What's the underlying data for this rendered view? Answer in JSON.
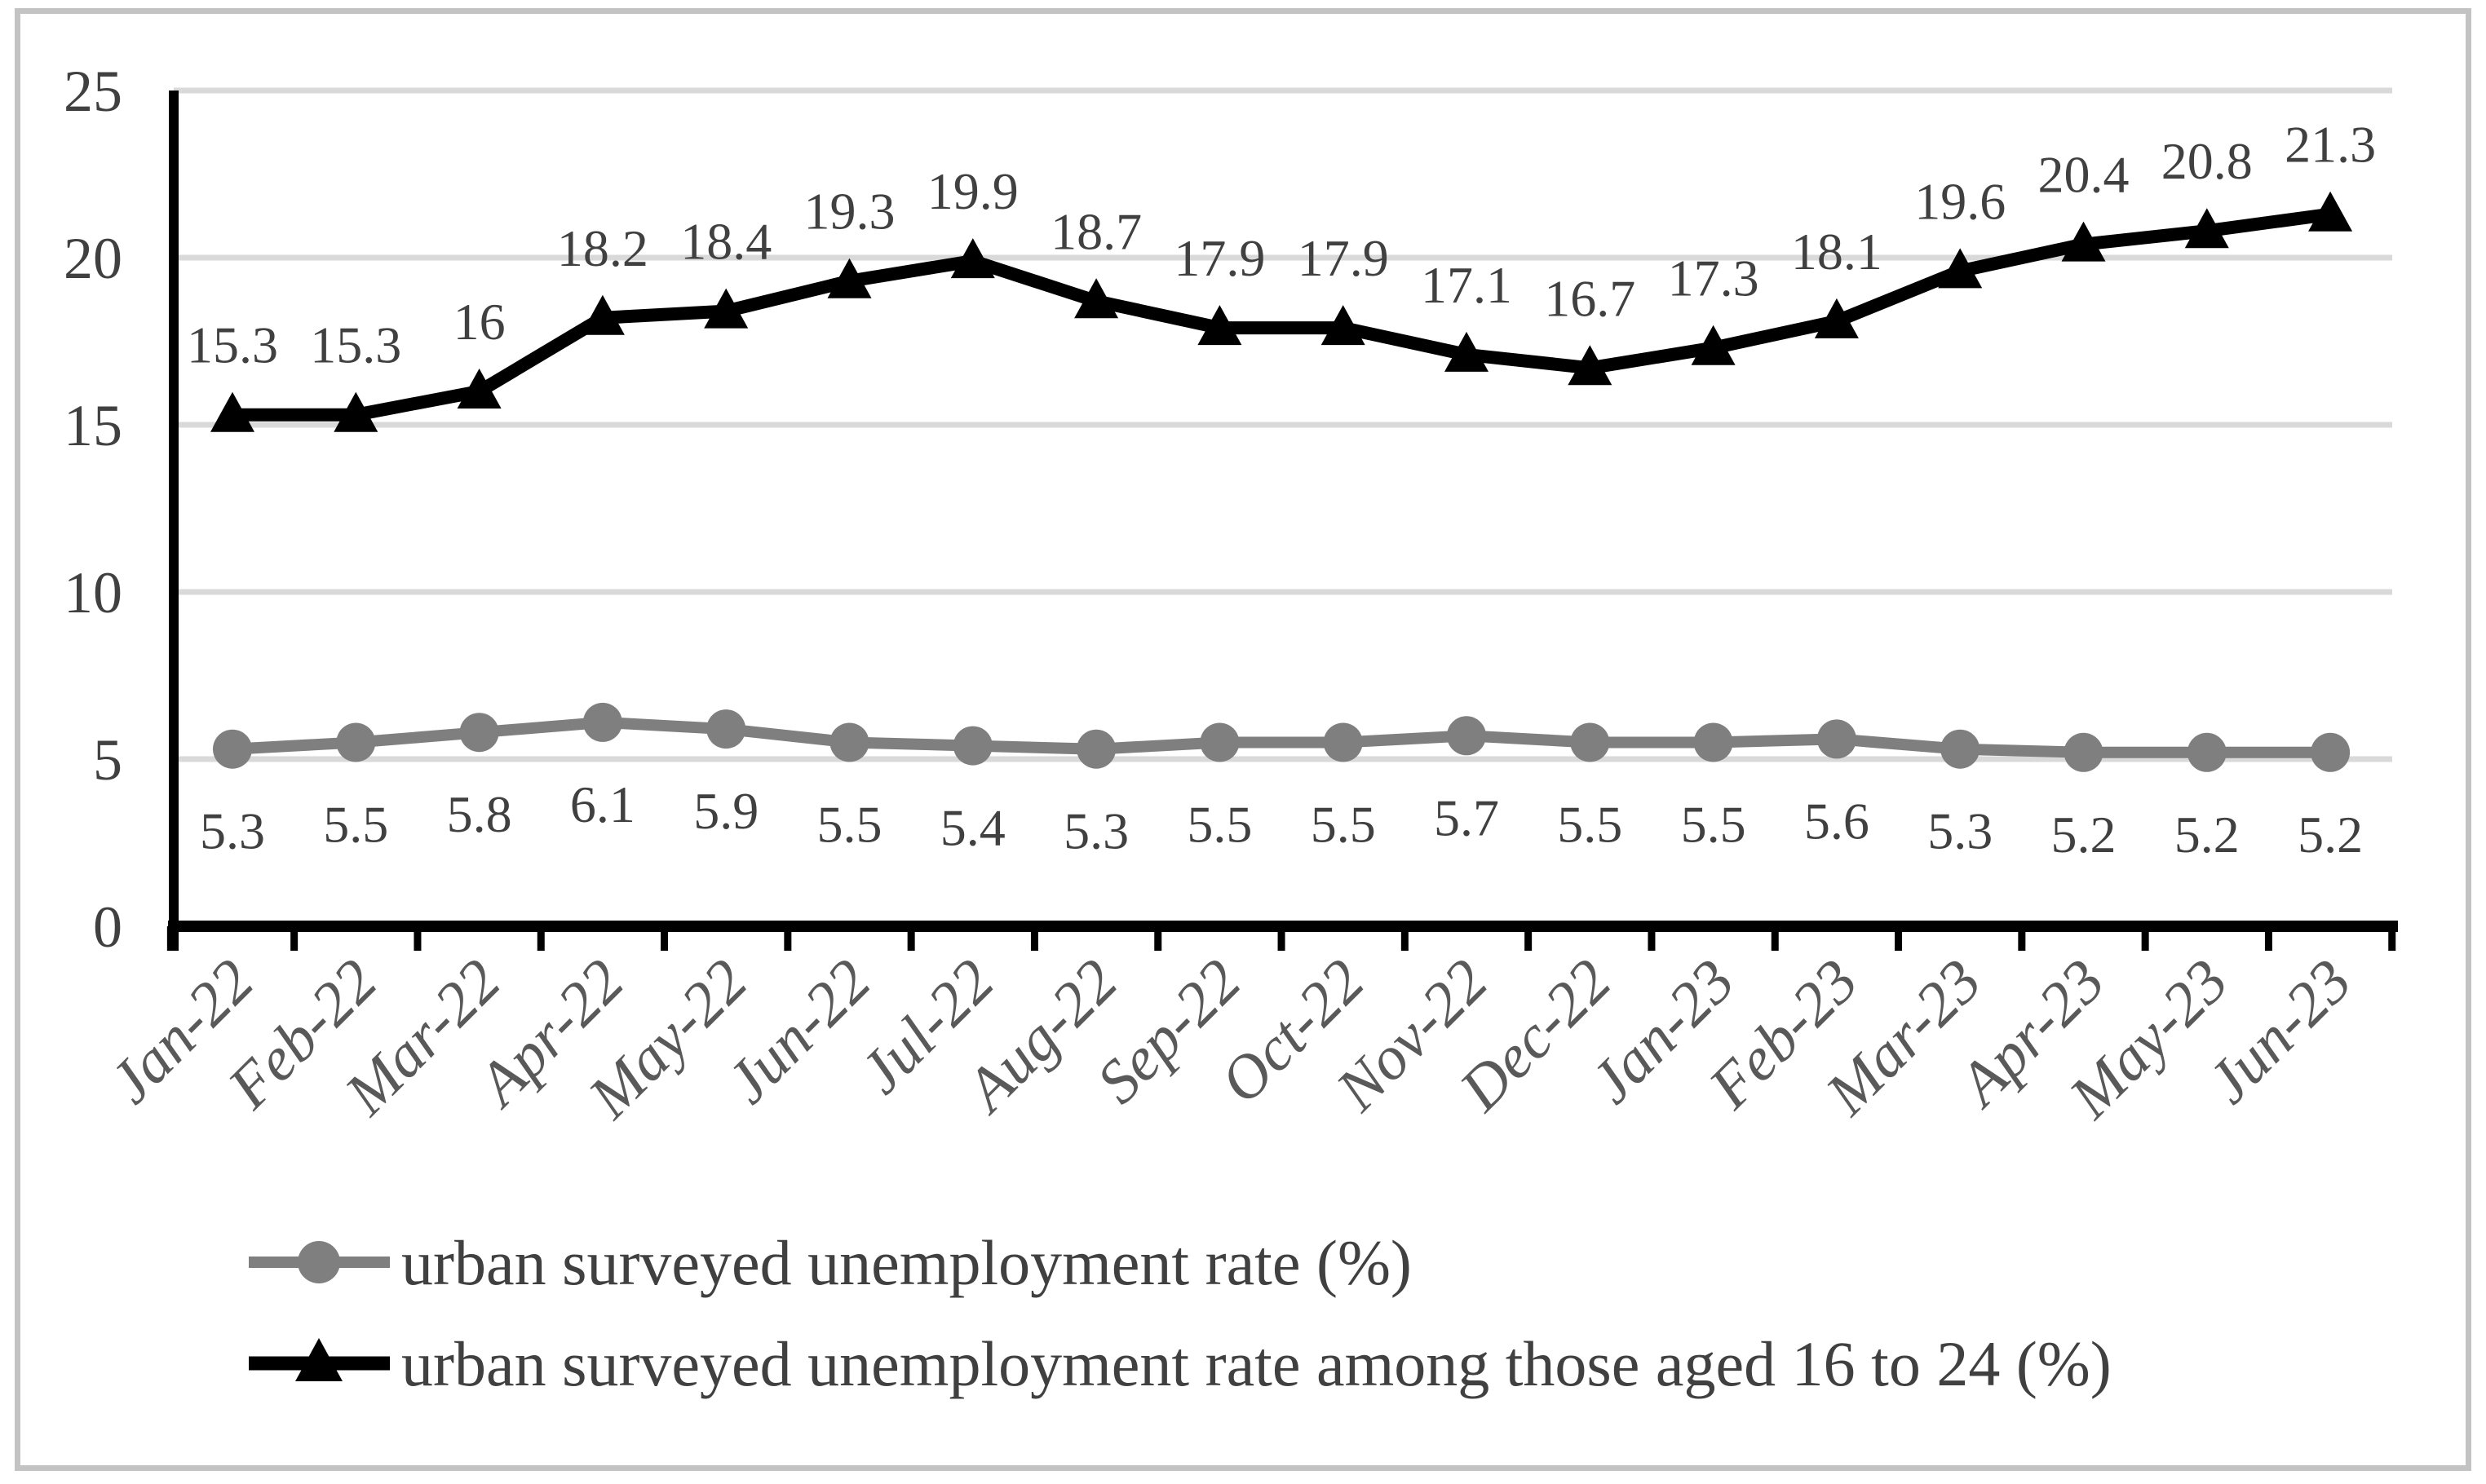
{
  "frame": {
    "background": "#ffffff",
    "border_color": "#c3c3c3"
  },
  "chart_data": {
    "type": "line",
    "title": "",
    "xlabel": "",
    "ylabel": "",
    "categories": [
      "Jan-22",
      "Feb-22",
      "Mar-22",
      "Apr-22",
      "May-22",
      "Jun-22",
      "Jul-22",
      "Aug-22",
      "Sep-22",
      "Oct-22",
      "Nov-22",
      "Dec-22",
      "Jan-23",
      "Feb-23",
      "Mar-23",
      "Apr-23",
      "May-23",
      "Jun-23"
    ],
    "series": [
      {
        "name": "urban surveyed unemployment rate (%)",
        "values": [
          5.3,
          5.5,
          5.8,
          6.1,
          5.9,
          5.5,
          5.4,
          5.3,
          5.5,
          5.5,
          5.7,
          5.5,
          5.5,
          5.6,
          5.3,
          5.2,
          5.2,
          5.2
        ],
        "color": "#7f7f7f",
        "marker": "circle",
        "data_label_position": "below"
      },
      {
        "name": "urban surveyed unemployment rate among those aged 16 to 24 (%)",
        "values": [
          15.3,
          15.3,
          16,
          18.2,
          18.4,
          19.3,
          19.9,
          18.7,
          17.9,
          17.9,
          17.1,
          16.7,
          17.3,
          18.1,
          19.6,
          20.4,
          20.8,
          21.3
        ],
        "color": "#000000",
        "marker": "triangle",
        "data_label_position": "above"
      }
    ],
    "yticks": [
      0,
      5,
      10,
      15,
      20,
      25
    ],
    "ylim": [
      0,
      25
    ],
    "grid": true,
    "gridline_color": "#d9d9d9",
    "axis_color": "#000000",
    "ytick_label_color": "#404040",
    "xtick_label_color": "#595959",
    "data_label_color": "#404040",
    "legend_position": "bottom-left",
    "legend_text_color": "#404040"
  }
}
